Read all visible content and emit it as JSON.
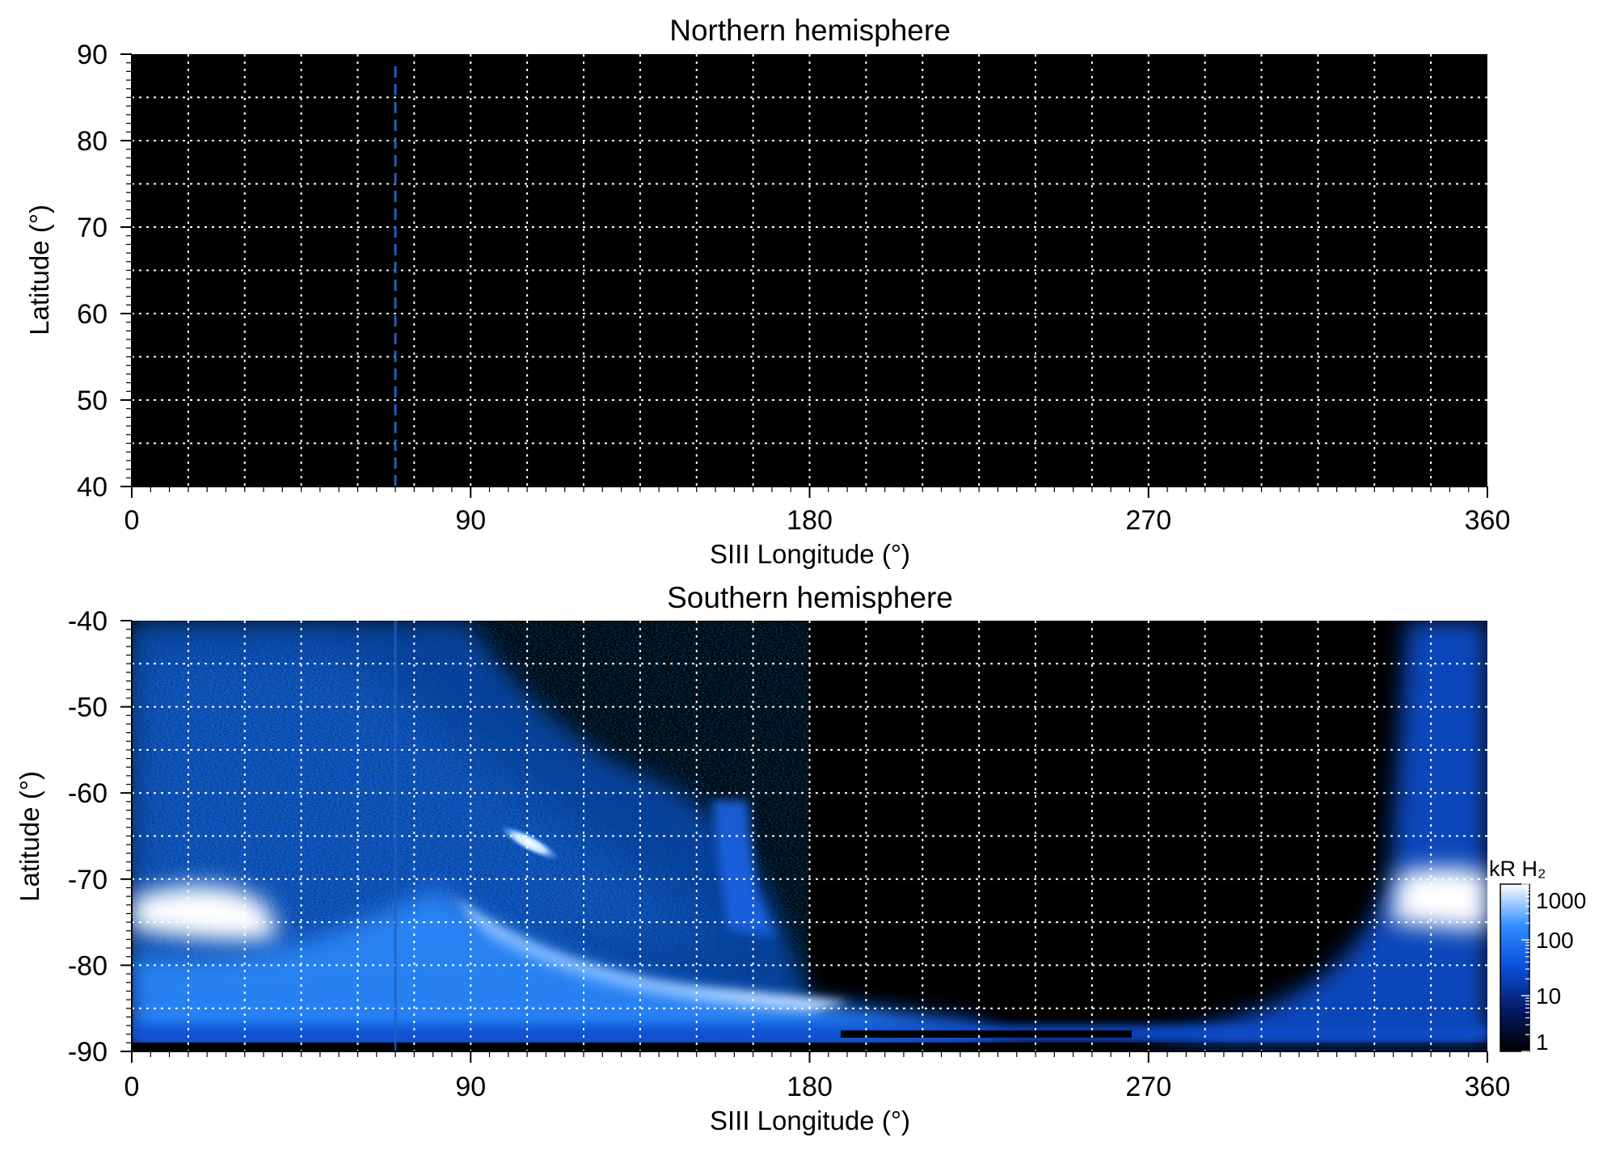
{
  "chart_data": [
    {
      "type": "heatmap",
      "title": "Northern hemisphere",
      "xlabel": "SIII Longitude (°)",
      "ylabel": "Latitude (°)",
      "xlim": [
        0,
        360
      ],
      "ylim": [
        40,
        90
      ],
      "xticks": [
        "0",
        "90",
        "180",
        "270",
        "360"
      ],
      "yticks": [
        "40",
        "50",
        "60",
        "70",
        "80",
        "90"
      ],
      "grid": true,
      "grid_step_longitude": 15,
      "grid_step_latitude": 5,
      "background_color": "#000000",
      "marker_line": {
        "longitude": 70,
        "style": "dashed",
        "color": "#1f5fbf"
      },
      "emission": "none"
    },
    {
      "type": "heatmap",
      "title": "Southern hemisphere",
      "xlabel": "SIII Longitude (°)",
      "ylabel": "Latitude (°)",
      "xlim": [
        0,
        360
      ],
      "ylim": [
        -90,
        -40
      ],
      "xticks": [
        "0",
        "90",
        "180",
        "270",
        "360"
      ],
      "yticks": [
        "-40",
        "-50",
        "-60",
        "-70",
        "-80",
        "-90"
      ],
      "grid": true,
      "grid_step_longitude": 15,
      "grid_step_latitude": 5,
      "background_color": "#000000",
      "marker_line": {
        "longitude": 70,
        "style": "solid",
        "color": "#1f5fbf"
      },
      "emission_regions": [
        {
          "name": "main-oval-left",
          "lon": [
            0,
            45
          ],
          "lat": [
            -78,
            -70
          ],
          "intensity_kR": 1000
        },
        {
          "name": "main-oval-arc",
          "lon": [
            90,
            190
          ],
          "lat": [
            -86,
            -76
          ],
          "intensity_kR": 1000
        },
        {
          "name": "bright-spot",
          "lon": [
            100,
            110
          ],
          "lat": [
            -67,
            -64
          ],
          "intensity_kR": 1000
        },
        {
          "name": "main-oval-right",
          "lon": [
            338,
            360
          ],
          "lat": [
            -76,
            -70
          ],
          "intensity_kR": 1000
        },
        {
          "name": "diffuse-left",
          "lon": [
            0,
            165
          ],
          "lat": [
            -90,
            -40
          ],
          "intensity_kR": 30
        },
        {
          "name": "diffuse-right",
          "lon": [
            310,
            360
          ],
          "lat": [
            -90,
            -40
          ],
          "intensity_kR": 30
        },
        {
          "name": "dark-region",
          "lon": [
            170,
            340
          ],
          "lat": [
            -88,
            -40
          ],
          "intensity_kR": 1
        }
      ],
      "colorbar": {
        "label": "kR H₂",
        "scale": "log",
        "ticks": [
          "1000",
          "100",
          "10",
          "1"
        ],
        "range": [
          1,
          1000
        ],
        "colors": [
          "#000000",
          "#061a66",
          "#0b4ed8",
          "#2f8cff",
          "#ffffff"
        ]
      }
    }
  ]
}
